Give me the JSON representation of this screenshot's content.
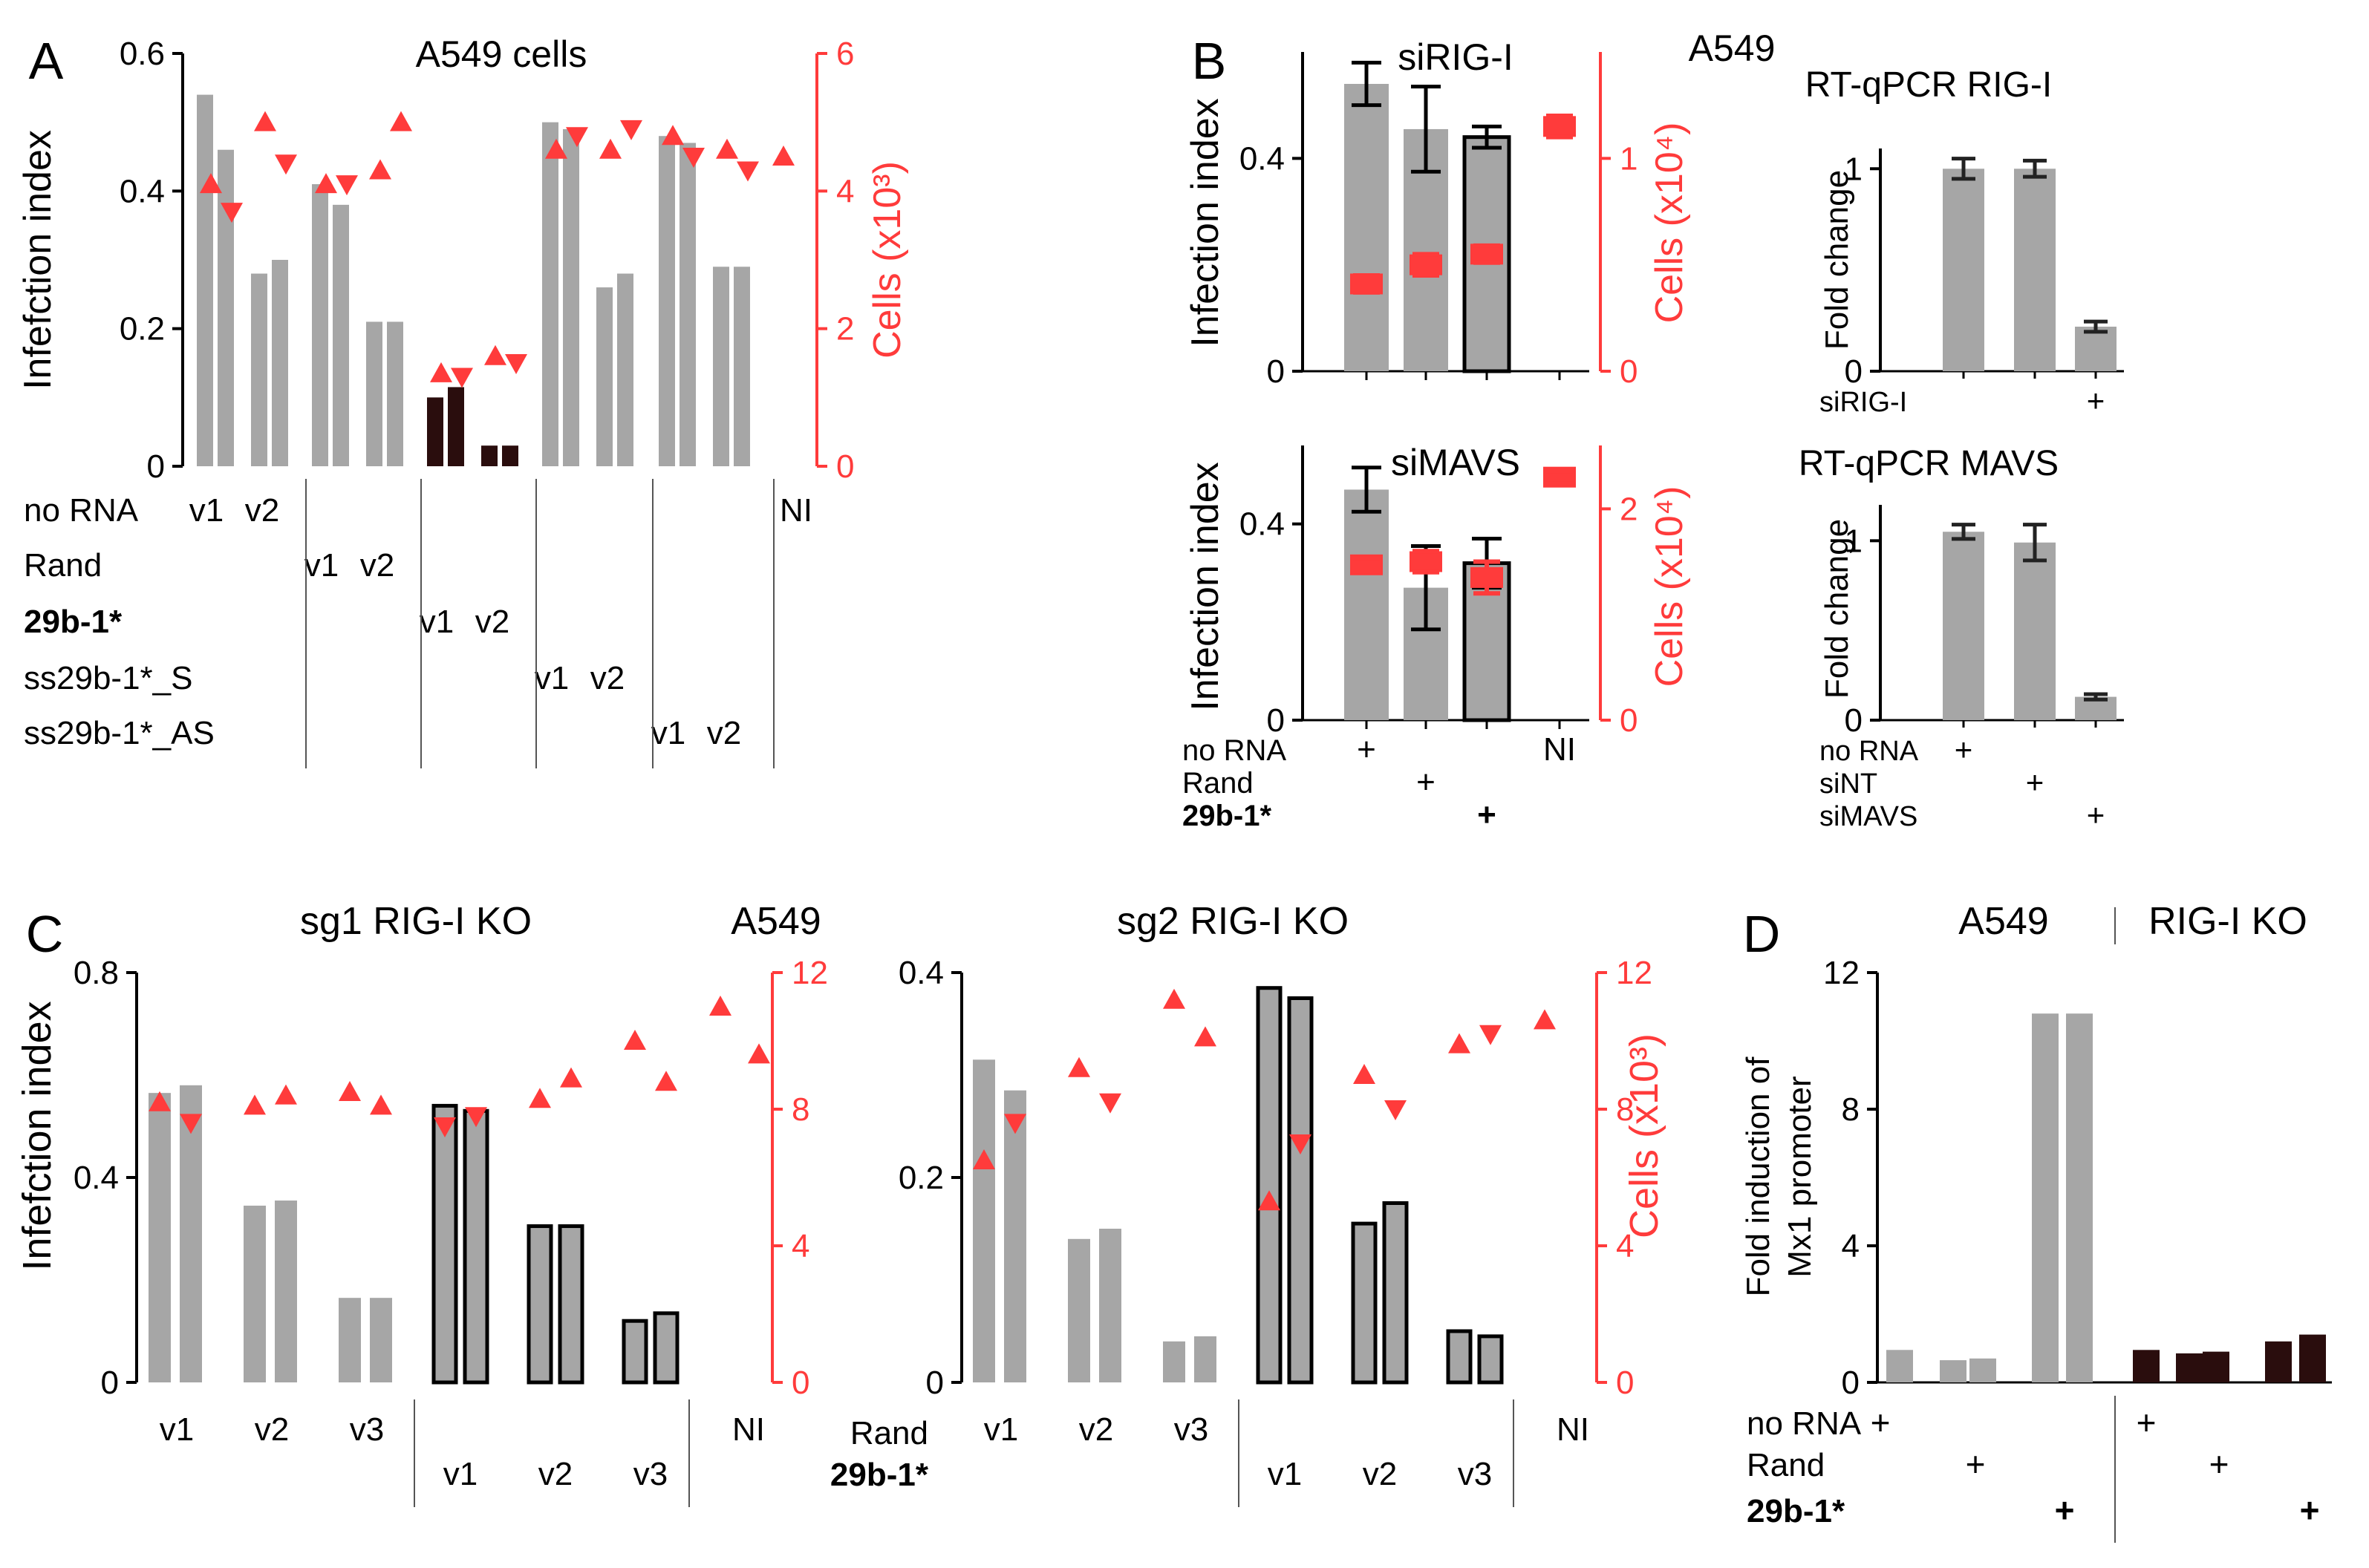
{
  "figure": {
    "colors": {
      "gray": "#a6a6a6",
      "red": "#ff3b3b",
      "dark": "#2a0d0d",
      "axis": "#000000"
    }
  },
  "chart_data": [
    {
      "panel": "A",
      "type": "bar",
      "title": "A549 cells",
      "ylabel": "Infefction index",
      "y2label": "Cells (x10³)",
      "ylim": [
        0,
        0.6
      ],
      "y2lim": [
        0,
        6
      ],
      "yticks": [
        "0",
        "0.2",
        "0.4",
        "0.6"
      ],
      "y2ticks": [
        "0",
        "2",
        "4",
        "6"
      ],
      "groups": [
        {
          "row_label": "no RNA",
          "bold": false,
          "labels": [
            "v1",
            "v2"
          ],
          "values": [
            0.54,
            0.46,
            0.28,
            0.3
          ],
          "fill": "gray",
          "cells": [
            4.1,
            3.7,
            5.0,
            4.4
          ],
          "markers": [
            "up",
            "down",
            "up",
            "down"
          ]
        },
        {
          "row_label": "Rand",
          "bold": false,
          "labels": [
            "v1",
            "v2"
          ],
          "values": [
            0.41,
            0.38,
            0.21,
            0.21
          ],
          "fill": "gray",
          "cells": [
            4.1,
            4.1,
            4.3,
            5.0
          ],
          "markers": [
            "up",
            "down",
            "up",
            "up"
          ]
        },
        {
          "row_label": "29b-1*",
          "bold": true,
          "labels": [
            "v1",
            "v2"
          ],
          "values": [
            0.1,
            0.115,
            0.03,
            0.03
          ],
          "fill": "dark",
          "cells": [
            1.35,
            1.3,
            1.6,
            1.5
          ],
          "markers": [
            "up",
            "down",
            "up",
            "down"
          ]
        },
        {
          "row_label": "ss29b-1*_S",
          "bold": false,
          "labels": [
            "v1",
            "v2"
          ],
          "values": [
            0.5,
            0.49,
            0.26,
            0.28
          ],
          "fill": "gray",
          "cells": [
            4.6,
            4.8,
            4.6,
            4.9
          ],
          "markers": [
            "up",
            "down",
            "up",
            "down"
          ]
        },
        {
          "row_label": "ss29b-1*_AS",
          "bold": false,
          "labels": [
            "v1",
            "v2"
          ],
          "values": [
            0.48,
            0.47,
            0.29,
            0.29
          ],
          "fill": "gray",
          "cells": [
            4.8,
            4.5,
            4.6,
            4.3
          ],
          "markers": [
            "up",
            "down",
            "up",
            "down"
          ]
        }
      ],
      "ni": {
        "label": "NI",
        "cells": 4.5
      }
    },
    {
      "panel": "B",
      "type": "bar",
      "panel_note": "A549",
      "rows": [
        {
          "title": "siRIG-I",
          "ylabel": "Infection index",
          "y2label": "Cells (x10⁴)",
          "ylim": [
            0,
            0.6
          ],
          "y2lim": [
            0,
            1.5
          ],
          "yticks": [
            "0",
            "0.4"
          ],
          "y2ticks": [
            "0",
            "1"
          ],
          "values": [
            0.54,
            0.455,
            0.44
          ],
          "errors": [
            0.04,
            0.08,
            0.02
          ],
          "fills": [
            "gray",
            "gray",
            "gray-outlined"
          ],
          "cells": [
            0.41,
            0.5,
            0.55,
            1.15
          ],
          "cells_err": [
            0.04,
            0.05,
            0.04,
            0.05
          ]
        },
        {
          "title": "siMAVS",
          "ylabel": "Infection index",
          "y2label": "Cells (x10⁴)",
          "ylim": [
            0,
            0.56
          ],
          "y2lim": [
            0,
            2.6
          ],
          "yticks": [
            "0",
            "0.4"
          ],
          "y2ticks": [
            "0",
            "2"
          ],
          "values": [
            0.47,
            0.27,
            0.32
          ],
          "errors": [
            0.045,
            0.085,
            0.05
          ],
          "fills": [
            "gray",
            "gray",
            "gray-outlined"
          ],
          "cells": [
            1.47,
            1.5,
            1.35,
            2.3
          ],
          "cells_err": [
            0.06,
            0.1,
            0.15,
            0.06
          ]
        }
      ],
      "rows_legend": [
        {
          "label": "no RNA",
          "bold": false,
          "marks": [
            "+",
            "",
            "",
            "NI"
          ]
        },
        {
          "label": "Rand",
          "bold": false,
          "marks": [
            "",
            "+",
            "",
            ""
          ]
        },
        {
          "label": "29b-1*",
          "bold": true,
          "marks": [
            "",
            "",
            "+",
            ""
          ]
        }
      ]
    },
    {
      "panel": "B-qPCR",
      "type": "bar",
      "charts": [
        {
          "title": "RT-qPCR RIG-I",
          "ylabel": "Fold change",
          "ylim": [
            0,
            1.1
          ],
          "yticks": [
            "0",
            "1"
          ],
          "values": [
            1.0,
            1.0,
            0.22
          ],
          "errors": [
            0.05,
            0.04,
            0.025
          ],
          "legend": [
            {
              "label": "siRIG-I",
              "marks": [
                "",
                "",
                "+"
              ]
            }
          ]
        },
        {
          "title": "RT-qPCR MAVS",
          "ylabel": "Fold change",
          "ylim": [
            0,
            1.2
          ],
          "yticks": [
            "0",
            "1"
          ],
          "values": [
            1.05,
            0.99,
            0.13
          ],
          "errors": [
            0.04,
            0.1,
            0.015
          ],
          "legend": [
            {
              "label": "no RNA",
              "marks": [
                "+",
                "",
                ""
              ]
            },
            {
              "label": "siNT",
              "marks": [
                "",
                "+",
                ""
              ]
            },
            {
              "label": "siMAVS",
              "marks": [
                "",
                "",
                "+"
              ]
            }
          ]
        }
      ]
    },
    {
      "panel": "C",
      "type": "bar",
      "panel_note": "A549",
      "ylabel": "Infefction index",
      "y2label": "Cells (x10³)",
      "charts": [
        {
          "title": "sg1 RIG-I KO",
          "ylim": [
            0,
            0.8
          ],
          "yticks": [
            "0",
            "0.4",
            "0.8"
          ],
          "y2ticks": [
            "0",
            "4",
            "8",
            "12"
          ],
          "y2lim": [
            0,
            12
          ],
          "values": [
            0.565,
            0.58,
            0.345,
            0.355,
            0.165,
            0.165,
            0.54,
            0.53,
            0.305,
            0.305,
            0.12,
            0.135
          ],
          "fills": [
            "gray",
            "gray",
            "gray",
            "gray",
            "gray",
            "gray",
            "outlined",
            "outlined",
            "outlined",
            "outlined",
            "outlined",
            "outlined"
          ],
          "cells": [
            8.2,
            7.6,
            8.1,
            8.4,
            8.5,
            8.1,
            7.5,
            7.8,
            8.3,
            8.9,
            10.0,
            8.8,
            11.0,
            9.6
          ],
          "markers": [
            "up",
            "down",
            "up",
            "up",
            "up",
            "up",
            "down",
            "down",
            "up",
            "up",
            "up",
            "up",
            "up",
            "up"
          ]
        },
        {
          "title": "sg2 RIG-I KO",
          "ylim": [
            0,
            0.4
          ],
          "yticks": [
            "0",
            "0.2",
            "0.4"
          ],
          "y2ticks": [
            "0",
            "4",
            "8",
            "12"
          ],
          "y2lim": [
            0,
            12
          ],
          "values": [
            0.315,
            0.285,
            0.14,
            0.15,
            0.04,
            0.045,
            0.385,
            0.375,
            0.155,
            0.175,
            0.05,
            0.045
          ],
          "fills": [
            "gray",
            "gray",
            "gray",
            "gray",
            "gray",
            "gray",
            "outlined",
            "outlined",
            "outlined",
            "outlined",
            "outlined",
            "outlined"
          ],
          "cells": [
            6.5,
            7.6,
            9.2,
            8.2,
            11.2,
            10.1,
            5.3,
            7.0,
            9.0,
            8.0,
            9.9,
            10.2,
            10.6
          ],
          "markers": [
            "up",
            "down",
            "up",
            "down",
            "up",
            "up",
            "up",
            "down",
            "up",
            "down",
            "up",
            "down",
            "up"
          ]
        }
      ],
      "xlabels_top": [
        "v1",
        "v2",
        "v3",
        "NI"
      ],
      "xlabels_bottom": [
        "v1",
        "v2",
        "v3"
      ],
      "row_labels": [
        {
          "label": "Rand",
          "bold": false
        },
        {
          "label": "29b-1*",
          "bold": true
        }
      ]
    },
    {
      "panel": "D",
      "type": "bar",
      "headers": [
        "A549",
        "RIG-I KO"
      ],
      "ylabel_line1": "Fold induction of",
      "ylabel_line2": "Mx1 promoter",
      "ylim": [
        0,
        12
      ],
      "yticks": [
        "0",
        "4",
        "8",
        "12"
      ],
      "values": [
        0.95,
        0.65,
        0.7,
        10.8,
        10.8,
        0.95,
        0.85,
        0.9,
        1.2,
        1.4
      ],
      "fills": [
        "gray",
        "gray",
        "gray",
        "gray",
        "gray",
        "dark",
        "dark",
        "dark",
        "dark",
        "dark"
      ],
      "legend": [
        {
          "label": "no RNA",
          "bold": false
        },
        {
          "label": "Rand",
          "bold": false
        },
        {
          "label": "29b-1*",
          "bold": true
        }
      ],
      "plus": "+"
    }
  ],
  "panel_letters": [
    "A",
    "B",
    "C",
    "D"
  ]
}
